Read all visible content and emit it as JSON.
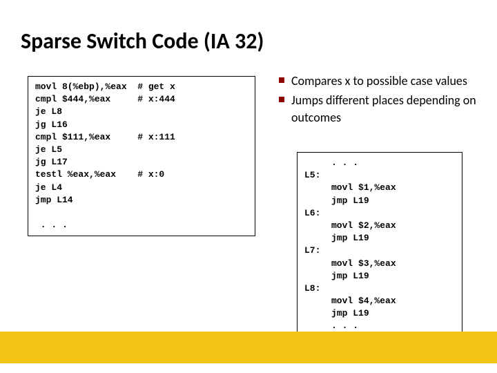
{
  "title": "Sparse Switch Code (IA 32)",
  "code_left": "movl 8(%ebp),%eax  # get x\ncmpl $444,%eax     # x:444\nje L8\njg L16\ncmpl $111,%eax     # x:111\nje L5\njg L17\ntestl %eax,%eax    # x:0\nje L4\njmp L14\n\n . . .",
  "code_right": "     . . .\nL5:\n     movl $1,%eax\n     jmp L19\nL6:\n     movl $2,%eax\n     jmp L19\nL7:\n     movl $3,%eax\n     jmp L19\nL8:\n     movl $4,%eax\n     jmp L19\n     . . .",
  "bullets": [
    "Compares x to possible case values",
    "Jumps different places depending on outcomes"
  ],
  "colors": {
    "bullet_marker": "#8b0000",
    "yellow_band": "#f2c413",
    "background": "#ffffff",
    "text": "#000000"
  }
}
